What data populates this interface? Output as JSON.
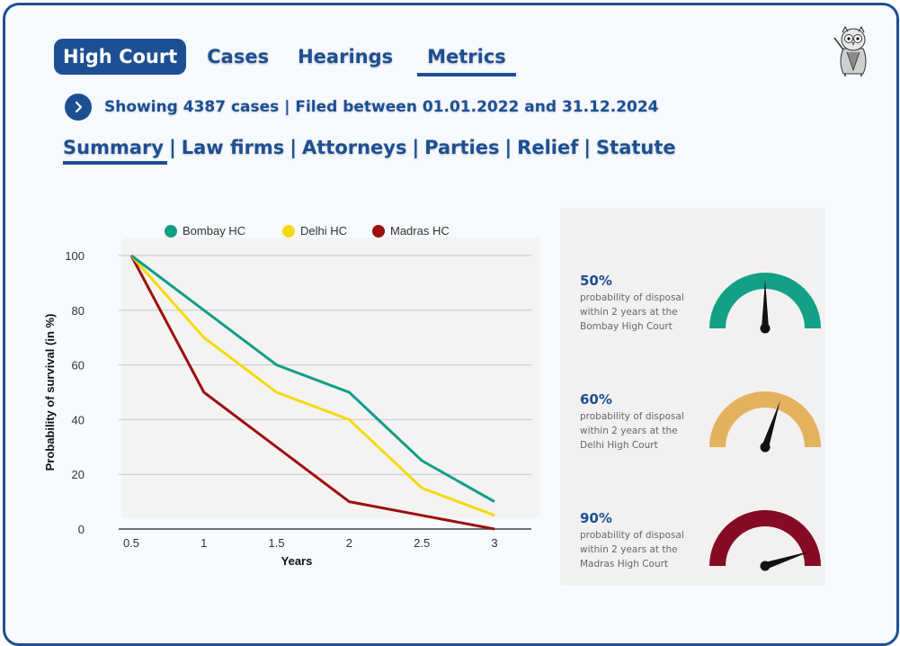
{
  "nav": {
    "tabs": [
      {
        "label": "High Court",
        "active": true
      },
      {
        "label": "Cases"
      },
      {
        "label": "Hearings"
      },
      {
        "label": "Metrics",
        "underlined": true
      }
    ]
  },
  "logo": {
    "icon": "owl-professor-icon"
  },
  "filter": {
    "icon": "chevron-right-icon",
    "text": "Showing 4387 cases | Filed between 01.01.2022 and 31.12.2024"
  },
  "subnav": {
    "items": [
      "Summary",
      "Law firms",
      "Attorneys",
      "Parties",
      "Relief",
      "Statute"
    ],
    "separator": "|",
    "active": "Summary"
  },
  "chart_data": {
    "type": "line",
    "xlabel": "Years",
    "ylabel": "Probability of survival (in %)",
    "x": [
      0.5,
      1,
      1.5,
      2,
      2.5,
      3
    ],
    "x_tick_labels": [
      "0.5",
      "1",
      "1.5",
      "2",
      "2.5",
      "3"
    ],
    "y_ticks": [
      0,
      20,
      40,
      60,
      80,
      100
    ],
    "ylim": [
      0,
      100
    ],
    "grid": true,
    "legend_position": "top",
    "series": [
      {
        "name": "Bombay HC",
        "color": "#109e86",
        "values": [
          100,
          80,
          60,
          50,
          25,
          10
        ]
      },
      {
        "name": "Delhi HC",
        "color": "#f5d90f",
        "values": [
          100,
          70,
          50,
          40,
          15,
          5
        ]
      },
      {
        "name": "Madras HC",
        "color": "#9c0f0f",
        "values": [
          100,
          50,
          30,
          10,
          5,
          0
        ]
      }
    ]
  },
  "gauges": [
    {
      "percent": "50%",
      "value": 0.5,
      "line1": "probability of disposal",
      "line2": "within 2 years at the",
      "line3": "Bombay High Court",
      "color": "#13a085"
    },
    {
      "percent": "60%",
      "value": 0.6,
      "line1": "probability of disposal",
      "line2": "within 2 years at the",
      "line3": "Delhi High Court",
      "color": "#e3b25e"
    },
    {
      "percent": "90%",
      "value": 0.9,
      "line1": "probability of disposal",
      "line2": "within 2 years at the",
      "line3": "Madras High Court",
      "color": "#860b24"
    }
  ]
}
